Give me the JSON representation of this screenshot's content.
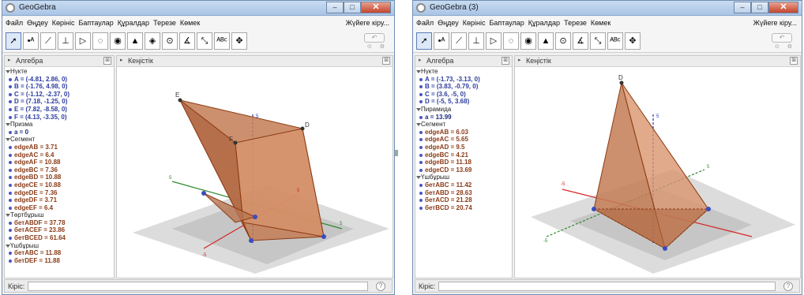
{
  "windows": [
    {
      "title": "GeoGebra",
      "menu": [
        "Файл",
        "Өңдеу",
        "Көрініс",
        "Баптаулар",
        "Құралдар",
        "Терезе",
        "Көмек"
      ],
      "login": "Жүйеге кіру...",
      "algebra_title": "Алгебра",
      "view_title": "Кеңістік",
      "input_label": "Кіріс:",
      "groups": [
        {
          "title": "Нүкте",
          "type": "pt",
          "items": [
            "A = (-4.81, 2.86, 0)",
            "B = (-1.76, 4.98, 0)",
            "C = (-1.12, -2.37, 0)",
            "D = (7.18, -1.25, 0)",
            "E = (7.82, -8.58, 0)",
            "F = (4.13, -3.35, 0)"
          ]
        },
        {
          "title": "Призма",
          "type": "num",
          "items": [
            "a = 0"
          ]
        },
        {
          "title": "Сегмент",
          "type": "seg",
          "items": [
            "edgeAB = 3.71",
            "edgeAC = 6.4",
            "edgeAF = 10.88",
            "edgeBC = 7.36",
            "edgeBD = 10.88",
            "edgeCE = 10.88",
            "edgeDE = 7.36",
            "edgeDF = 3.71",
            "edgeEF = 6.4"
          ]
        },
        {
          "title": "Төртбұрыш",
          "type": "seg",
          "items": [
            "бетABDF = 37.78",
            "бетACEF = 23.86",
            "бетBCED = 61.64"
          ]
        },
        {
          "title": "Үшбұрыш",
          "type": "seg",
          "items": [
            "бетABC = 11.88",
            "бетDEF = 11.88"
          ]
        }
      ],
      "scene": {
        "point_labels": [
          "E",
          "D",
          "F"
        ],
        "axis_labels": [
          "5",
          "-5",
          "5",
          "5",
          "5"
        ]
      }
    },
    {
      "title": "GeoGebra (3)",
      "menu": [
        "Файл",
        "Өңдеу",
        "Көрініс",
        "Баптаулар",
        "Құралдар",
        "Терезе",
        "Көмек"
      ],
      "login": "Жүйеге кіру...",
      "algebra_title": "Алгебра",
      "view_title": "Кеңістік",
      "input_label": "Кіріс:",
      "groups": [
        {
          "title": "Нүкте",
          "type": "pt",
          "items": [
            "A = (-1.73, -3.13, 0)",
            "B = (3.83, -0.79, 0)",
            "C = (3.6, -5, 0)",
            "D = (-5, 5, 3.68)"
          ]
        },
        {
          "title": "Пирамида",
          "type": "num",
          "items": [
            "a = 13.99"
          ]
        },
        {
          "title": "Сегмент",
          "type": "seg",
          "items": [
            "edgeAB = 6.03",
            "edgeAC = 5.65",
            "edgeAD = 9.5",
            "edgeBC = 4.21",
            "edgeBD = 11.18",
            "edgeCD = 13.69"
          ]
        },
        {
          "title": "Үшбұрыш",
          "type": "seg",
          "items": [
            "бетABC = 11.42",
            "бетABD = 28.63",
            "бетACD = 21.28",
            "бетBCD = 20.74"
          ]
        }
      ],
      "scene": {
        "point_labels": [
          "D"
        ],
        "axis_labels": [
          "5",
          "-5",
          "5",
          "-5"
        ]
      }
    }
  ],
  "colors": {
    "solid_fill": "#c47c55",
    "solid_edge": "#8b3a12",
    "x_axis": "#d42626",
    "y_axis": "#2d8a2d",
    "z_axis": "#2a3bb5",
    "point": "#3b4cc0",
    "plane": "#a8a8a8"
  },
  "icons": [
    "arrow-icon",
    "point-icon",
    "line-icon",
    "perpendicular-icon",
    "polygon-icon",
    "circle-icon",
    "sphere-icon",
    "pyramid-icon",
    "plane-icon",
    "rotate-icon",
    "angle-icon",
    "reflect-icon",
    "text-icon",
    "move-view-icon"
  ]
}
